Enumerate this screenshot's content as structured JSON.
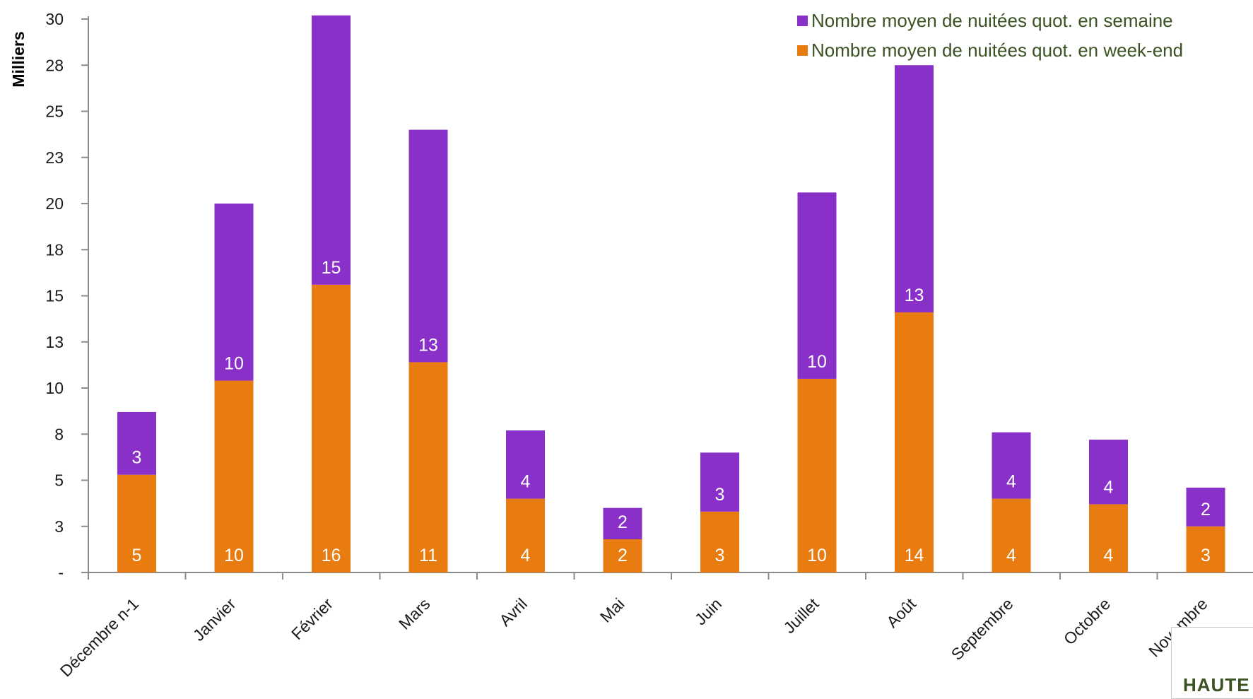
{
  "chart_data": {
    "type": "bar",
    "stacked": true,
    "categories": [
      "Décembre n-1",
      "Janvier",
      "Février",
      "Mars",
      "Avril",
      "Mai",
      "Juin",
      "Juillet",
      "Août",
      "Septembre",
      "Octobre",
      "Novembre"
    ],
    "series": [
      {
        "name": "Nombre moyen de nuitées quot. en week-end",
        "color": "#E87C10",
        "values": [
          5.3,
          10.4,
          15.6,
          11.4,
          4.0,
          1.8,
          3.3,
          10.5,
          14.1,
          4.0,
          3.7,
          2.5
        ],
        "labels": [
          "5",
          "10",
          "16",
          "11",
          "4",
          "2",
          "3",
          "10",
          "14",
          "4",
          "4",
          "3"
        ]
      },
      {
        "name": "Nombre moyen de nuitées quot. en semaine",
        "color": "#8830C8",
        "values": [
          3.4,
          9.6,
          14.6,
          12.6,
          3.7,
          1.7,
          3.2,
          10.1,
          13.4,
          3.6,
          3.5,
          2.1
        ],
        "labels": [
          "3",
          "10",
          "15",
          "13",
          "4",
          "2",
          "3",
          "10",
          "13",
          "4",
          "4",
          "2"
        ]
      }
    ],
    "ylabel": "Milliers",
    "ylim": [
      0,
      30
    ],
    "yticks": [
      0,
      2.5,
      5,
      7.5,
      10,
      12.5,
      15,
      17.5,
      20,
      22.5,
      25,
      27.5,
      30
    ],
    "ytick_labels": [
      "-",
      "3",
      "5",
      "8",
      "10",
      "13",
      "15",
      "18",
      "20",
      "23",
      "25",
      "28",
      "30"
    ],
    "grid": false,
    "legend_position": "top-right"
  },
  "logo": {
    "text": "HAUTE"
  }
}
